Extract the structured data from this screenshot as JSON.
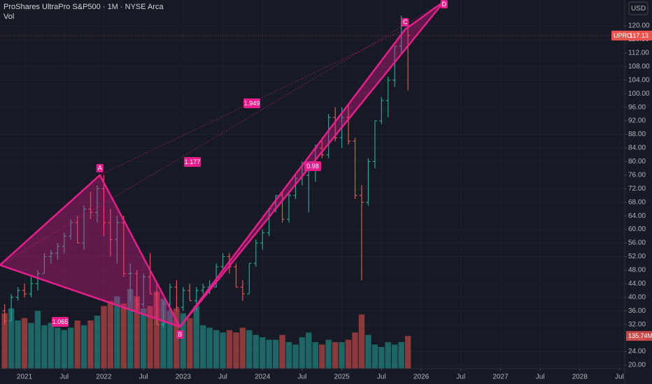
{
  "chart_data": {
    "type": "ohlc",
    "title": "ProShares UltraPro S&P500 · 1M · NYSE Arca",
    "volume_label": "Vol",
    "currency": "USD",
    "symbol": "UPRO",
    "last_volume_label": "135.74M",
    "up_color": "#26a69a",
    "down_color": "#ef5350",
    "x": [
      2020.75,
      2020.833,
      2020.917,
      2021,
      2021.083,
      2021.167,
      2021.25,
      2021.333,
      2021.417,
      2021.5,
      2021.583,
      2021.667,
      2021.75,
      2021.833,
      2021.917,
      2022,
      2022.083,
      2022.167,
      2022.25,
      2022.333,
      2022.417,
      2022.5,
      2022.583,
      2022.667,
      2022.75,
      2022.833,
      2022.917,
      2023,
      2023.083,
      2023.167,
      2023.25,
      2023.333,
      2023.417,
      2023.5,
      2023.583,
      2023.667,
      2023.75,
      2023.833,
      2023.917,
      2024,
      2024.083,
      2024.167,
      2024.25,
      2024.333,
      2024.417,
      2024.5,
      2024.583,
      2024.667,
      2024.75,
      2024.833,
      2024.917,
      2025,
      2025.083,
      2025.167,
      2025.25,
      2025.333,
      2025.417,
      2025.5,
      2025.583,
      2025.667,
      2025.75,
      2025.833
    ],
    "open": [
      36,
      33,
      40,
      42,
      41,
      44,
      47,
      52,
      53,
      55,
      58,
      62,
      56,
      66,
      65,
      72,
      62,
      57,
      62,
      47,
      47,
      38,
      46,
      41,
      32,
      38,
      43,
      37,
      42,
      39,
      42,
      43,
      43,
      49,
      52,
      49,
      43,
      41,
      50,
      56,
      59,
      66,
      70,
      63,
      70,
      75,
      76,
      79,
      84,
      82,
      93,
      87,
      93,
      86,
      70,
      68,
      80,
      92,
      98,
      104,
      114,
      120
    ],
    "high": [
      38,
      41,
      43,
      44,
      46,
      48,
      53,
      54,
      56,
      59,
      63,
      64,
      67,
      71,
      73,
      76,
      66,
      64,
      64,
      50,
      48,
      47,
      53,
      44,
      39,
      44,
      45,
      43,
      44,
      43,
      44,
      45,
      50,
      53,
      53,
      50,
      45,
      50,
      57,
      60,
      66,
      70,
      71,
      71,
      76,
      80,
      80,
      85,
      87,
      94,
      96,
      96,
      97,
      87,
      73,
      81,
      92,
      99,
      105,
      114,
      123,
      121
    ],
    "low": [
      32,
      33,
      39,
      40,
      40,
      42,
      47,
      50,
      51,
      53,
      57,
      56,
      54,
      63,
      62,
      58,
      52,
      50,
      46,
      39,
      36,
      37,
      41,
      32,
      31,
      36,
      36,
      36,
      39,
      36,
      41,
      41,
      43,
      48,
      47,
      43,
      39,
      41,
      49,
      54,
      58,
      65,
      62,
      62,
      69,
      73,
      65,
      74,
      81,
      81,
      86,
      84,
      85,
      69,
      45,
      67,
      78,
      91,
      93,
      102,
      112,
      101
    ],
    "close": [
      33,
      40,
      42,
      41,
      44,
      47,
      52,
      53,
      55,
      58,
      62,
      56,
      66,
      65,
      72,
      62,
      57,
      62,
      47,
      47,
      38,
      46,
      41,
      32,
      38,
      43,
      37,
      42,
      39,
      42,
      43,
      43,
      49,
      52,
      49,
      43,
      41,
      50,
      56,
      59,
      66,
      70,
      63,
      70,
      75,
      76,
      79,
      84,
      82,
      93,
      87,
      93,
      86,
      70,
      68,
      80,
      92,
      98,
      104,
      114,
      120,
      117.13
    ],
    "volume": [
      230,
      250,
      200,
      210,
      190,
      240,
      180,
      190,
      170,
      160,
      170,
      200,
      180,
      200,
      220,
      260,
      280,
      300,
      270,
      330,
      300,
      250,
      260,
      320,
      290,
      240,
      250,
      230,
      210,
      260,
      180,
      170,
      160,
      150,
      160,
      150,
      170,
      160,
      140,
      130,
      120,
      120,
      140,
      110,
      100,
      130,
      150,
      110,
      100,
      120,
      110,
      110,
      120,
      150,
      225,
      140,
      100,
      90,
      110,
      100,
      110,
      135.74
    ],
    "volume_ylim": [
      0,
      400
    ],
    "xlim": [
      2020.691,
      2028.566
    ],
    "xticks": [
      2021,
      {
        "value": 2021.5,
        "label": "Jul"
      },
      2022,
      {
        "value": 2022.5,
        "label": "Jul"
      },
      2023,
      {
        "value": 2023.5,
        "label": "Jul"
      },
      2024,
      {
        "value": 2024.5,
        "label": "Jul"
      },
      2025,
      {
        "value": 2025.5,
        "label": "Jul"
      },
      2026,
      {
        "value": 2026.5,
        "label": "Jul"
      },
      2027,
      {
        "value": 2027.5,
        "label": "Jul"
      },
      2028,
      {
        "value": 2028.5,
        "label": "Jul"
      }
    ],
    "ylim": [
      18.97,
      127.61
    ],
    "yticks": [
      {
        "value": 20,
        "label": "20.00"
      },
      {
        "value": 24,
        "label": "24.00"
      },
      {
        "value": 28,
        "label": "28.00"
      },
      {
        "value": 32,
        "label": "32.00"
      },
      {
        "value": 36,
        "label": "36.00"
      },
      {
        "value": 40,
        "label": "40.00"
      },
      {
        "value": 44,
        "label": "44.00"
      },
      {
        "value": 48,
        "label": "48.00"
      },
      {
        "value": 52,
        "label": "52.00"
      },
      {
        "value": 56,
        "label": "56.00"
      },
      {
        "value": 60,
        "label": "60.00"
      },
      {
        "value": 64,
        "label": "64.00"
      },
      {
        "value": 68,
        "label": "68.00"
      },
      {
        "value": 72,
        "label": "72.00"
      },
      {
        "value": 76,
        "label": "76.00"
      },
      {
        "value": 80,
        "label": "80.00"
      },
      {
        "value": 84,
        "label": "84.00"
      },
      {
        "value": 88,
        "label": "88.00"
      },
      {
        "value": 92,
        "label": "92.00"
      },
      {
        "value": 96,
        "label": "96.00"
      },
      {
        "value": 100,
        "label": "100.00"
      },
      {
        "value": 104,
        "label": "104.00"
      },
      {
        "value": 108,
        "label": "108.00"
      },
      {
        "value": 112,
        "label": "112.00"
      },
      {
        "value": 116,
        "label": "116.00"
      },
      {
        "value": 120,
        "label": "120.00"
      }
    ],
    "grid": true,
    "pattern": {
      "color": "#e91e8c",
      "points": [
        {
          "label": null,
          "x": 2020.69,
          "y": 49.5
        },
        {
          "label": "A",
          "x": 2021.95,
          "y": 76
        },
        {
          "label": "B",
          "x": 2022.96,
          "y": 31.3
        },
        {
          "label": "C",
          "x": 2025.8,
          "y": 119
        },
        {
          "label": "D",
          "x": 2026.29,
          "y": 127.2
        }
      ],
      "ratio_labels": [
        "1.065",
        "1.177",
        "1.949",
        "0.98"
      ]
    }
  }
}
